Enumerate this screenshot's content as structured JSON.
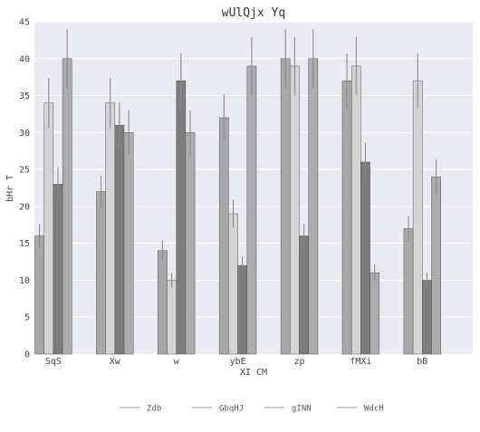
{
  "chart_data": {
    "type": "bar",
    "title": "wUlQjx Yq",
    "xlabel": "XI CM",
    "ylabel": "bHr T",
    "categories": [
      "SqS",
      "Xw",
      "w",
      "ybE",
      "zp",
      "fMXi",
      "bB"
    ],
    "ylim": [
      0,
      45
    ],
    "yticks": [
      0,
      5,
      10,
      15,
      20,
      25,
      30,
      35,
      40,
      45
    ],
    "grid": true,
    "legend_position": "bottom-center",
    "series": [
      {
        "name": "Zdb",
        "color": "#a8a8a8",
        "values": [
          16,
          22,
          14,
          32,
          40,
          37,
          17
        ],
        "errors": [
          1.6,
          2.2,
          1.4,
          3.2,
          4.0,
          3.7,
          1.7
        ]
      },
      {
        "name": "GbqHJ",
        "color": "#d4d4d4",
        "values": [
          34,
          34,
          10,
          19,
          39,
          39,
          37
        ],
        "errors": [
          3.4,
          3.4,
          1.0,
          1.9,
          3.9,
          3.9,
          3.7
        ]
      },
      {
        "name": "gINN",
        "color": "#7d7d7d",
        "values": [
          23,
          31,
          37,
          12,
          16,
          26,
          10
        ],
        "errors": [
          2.3,
          3.1,
          3.7,
          1.2,
          1.6,
          2.6,
          1.0
        ]
      },
      {
        "name": "WdcH",
        "color": "#acacac",
        "values": [
          40,
          30,
          30,
          39,
          40,
          11,
          24
        ],
        "errors": [
          4.0,
          3.0,
          3.0,
          3.9,
          4.0,
          1.1,
          2.4
        ]
      }
    ]
  }
}
